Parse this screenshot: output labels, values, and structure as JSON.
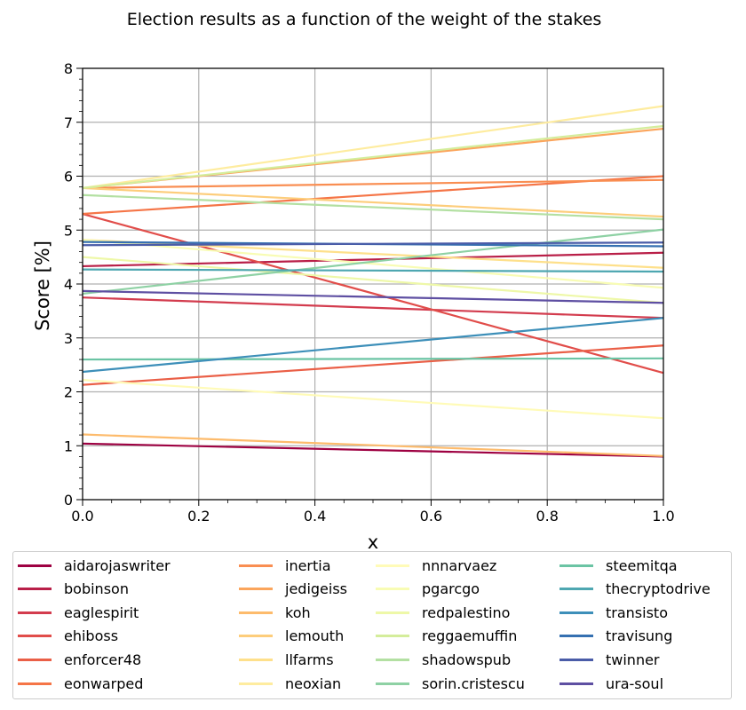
{
  "chart_data": {
    "type": "line",
    "title": "Election results as a function of the weight of the stakes",
    "xlabel": "x",
    "ylabel": "Score [%]",
    "xlim": [
      0,
      1
    ],
    "ylim": [
      0,
      8
    ],
    "xticks": [
      "0.0",
      "0.2",
      "0.4",
      "0.6",
      "0.8",
      "1.0"
    ],
    "yticks": [
      "0",
      "1",
      "2",
      "3",
      "4",
      "5",
      "6",
      "7",
      "8"
    ],
    "grid": true,
    "legend_position": "bottom",
    "series": [
      {
        "name": "aidarojaswriter",
        "color": "#9e0142",
        "x": [
          0,
          1
        ],
        "y": [
          1.04,
          0.8
        ]
      },
      {
        "name": "bobinson",
        "color": "#b91f48",
        "x": [
          0,
          1
        ],
        "y": [
          4.33,
          4.58
        ]
      },
      {
        "name": "eaglespirit",
        "color": "#d33c4e",
        "x": [
          0,
          1
        ],
        "y": [
          3.75,
          3.37
        ]
      },
      {
        "name": "ehiboss",
        "color": "#e14d4a",
        "x": [
          0,
          1
        ],
        "y": [
          5.3,
          2.35
        ]
      },
      {
        "name": "enforcer48",
        "color": "#ea5f47",
        "x": [
          0,
          1
        ],
        "y": [
          2.13,
          2.86
        ]
      },
      {
        "name": "eonwarped",
        "color": "#f57547",
        "x": [
          0,
          1
        ],
        "y": [
          5.3,
          6.0
        ]
      },
      {
        "name": "inertia",
        "color": "#f98e52",
        "x": [
          0,
          1
        ],
        "y": [
          5.78,
          5.93
        ]
      },
      {
        "name": "jedigeiss",
        "color": "#fba55c",
        "x": [
          0,
          1
        ],
        "y": [
          5.78,
          6.88
        ]
      },
      {
        "name": "koh",
        "color": "#fdbb6c",
        "x": [
          0,
          1
        ],
        "y": [
          1.21,
          0.81
        ]
      },
      {
        "name": "lemouth",
        "color": "#fdcd7b",
        "x": [
          0,
          1
        ],
        "y": [
          5.78,
          5.25
        ]
      },
      {
        "name": "llfarms",
        "color": "#fee08b",
        "x": [
          0,
          1
        ],
        "y": [
          4.82,
          4.3
        ]
      },
      {
        "name": "neoxian",
        "color": "#feec9f",
        "x": [
          0,
          1
        ],
        "y": [
          5.78,
          7.3
        ]
      },
      {
        "name": "nnnarvaez",
        "color": "#fffbb8",
        "x": [
          0,
          1
        ],
        "y": [
          2.22,
          1.51
        ]
      },
      {
        "name": "pgarcgo",
        "color": "#f8fcb4",
        "x": [
          0,
          1
        ],
        "y": [
          4.82,
          3.93
        ]
      },
      {
        "name": "redpalestino",
        "color": "#eef8a8",
        "x": [
          0,
          1
        ],
        "y": [
          4.5,
          3.65
        ]
      },
      {
        "name": "reggaemuffin",
        "color": "#d4ed9b",
        "x": [
          0,
          1
        ],
        "y": [
          5.78,
          6.93
        ]
      },
      {
        "name": "shadowspub",
        "color": "#b3e0a2",
        "x": [
          0,
          1
        ],
        "y": [
          5.65,
          5.2
        ]
      },
      {
        "name": "sorin.cristescu",
        "color": "#8ed1a4",
        "x": [
          0,
          1
        ],
        "y": [
          3.82,
          5.01
        ]
      },
      {
        "name": "steemitqa",
        "color": "#6bc4a4",
        "x": [
          0,
          1
        ],
        "y": [
          2.6,
          2.62
        ]
      },
      {
        "name": "thecryptodrive",
        "color": "#4ea7b1",
        "x": [
          0,
          1
        ],
        "y": [
          4.27,
          4.23
        ]
      },
      {
        "name": "transisto",
        "color": "#3d8fb9",
        "x": [
          0,
          1
        ],
        "y": [
          2.37,
          3.37
        ]
      },
      {
        "name": "travisung",
        "color": "#3570b1",
        "x": [
          0,
          1
        ],
        "y": [
          4.78,
          4.7
        ]
      },
      {
        "name": "twinner",
        "color": "#4a5ca8",
        "x": [
          0,
          1
        ],
        "y": [
          4.72,
          4.77
        ]
      },
      {
        "name": "ura-soul",
        "color": "#5e4fa2",
        "x": [
          0,
          1
        ],
        "y": [
          3.87,
          3.65
        ]
      }
    ]
  }
}
